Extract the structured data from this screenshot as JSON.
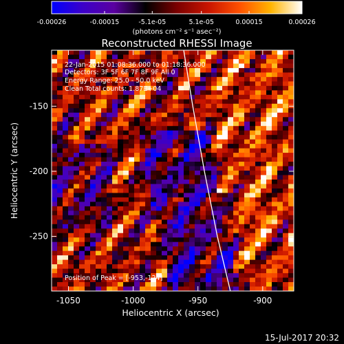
{
  "colorbar": {
    "tick_labels": [
      "-0.00026",
      "-0.00015",
      "-5.1e-05",
      "5.1e-05",
      "0.00015",
      "0.00026"
    ],
    "tick_values": [
      -0.00026,
      -0.00015,
      -5.1e-05,
      5.1e-05,
      0.00015,
      0.00026
    ],
    "range": [
      -0.00026,
      0.00026
    ],
    "units": "(photons cm⁻² s⁻¹ asec⁻²)",
    "colors": [
      "#0000ff",
      "#3c00c8",
      "#5a00a0",
      "#000000",
      "#7a0000",
      "#c81400",
      "#ff5000",
      "#ffb400",
      "#ffffff"
    ]
  },
  "annotations": {
    "time_line": "22-Jan-2015 01:08:36.000 to 01:18:36.000",
    "detectors_line": "Detectors: 3F 5F 6F 7F 8F 9F All 0",
    "energy_line": "Energy Range: 25.0 - 50.0 keV",
    "clean_line": "Clean     Total counts: 1.87E+04",
    "peak_line": "Position of Peak = [-953,-124]",
    "footer_timestamp": "15-Jul-2017 20:32"
  },
  "chart_data": {
    "type": "heatmap",
    "title": "Reconstructed RHESSI Image",
    "xlabel": "Heliocentric X (arcsec)",
    "ylabel": "Heliocentric Y (arcsec)",
    "xlim": [
      -1063,
      -876
    ],
    "ylim": [
      -292,
      -107
    ],
    "x_ticks": [
      -1050,
      -1000,
      -950,
      -900
    ],
    "x_tick_labels": [
      "-1050",
      "-1000",
      "-950",
      "-900"
    ],
    "y_ticks": [
      -150,
      -200,
      -250
    ],
    "y_tick_labels": [
      "-150",
      "-200",
      "-250"
    ],
    "grid": false,
    "value_range": [
      -0.00026,
      0.00026
    ],
    "limb_curve": {
      "x": [
        -961,
        -954,
        -945,
        -935,
        -925
      ],
      "y": [
        -107,
        -150,
        -200,
        -250,
        -292
      ]
    },
    "peak": {
      "x": -953,
      "y": -124
    }
  }
}
